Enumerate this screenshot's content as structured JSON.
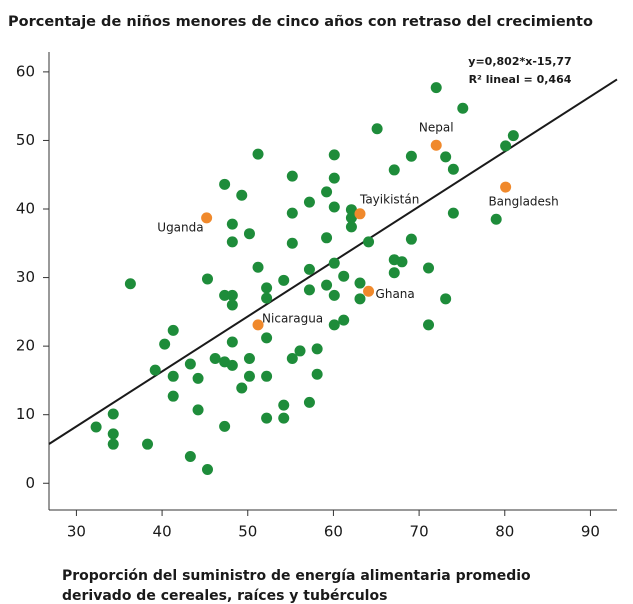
{
  "chart_data": {
    "type": "scatter",
    "title": "Porcentaje de niños menores de cinco años con retraso del crecimiento",
    "x_label": [
      "Proporción del suministro de energía alimentaria promedio",
      "derivado de cereales, raíces y tubérculos"
    ],
    "annotations": [
      "y=0,802*x-15,77",
      "R² lineal = 0,464"
    ],
    "trendline": {
      "slope": 0.802,
      "intercept": -15.77,
      "color": "#1a1a1a"
    },
    "xlim": [
      26.8,
      93.1
    ],
    "ylim": [
      -3.9,
      62.9
    ],
    "xticks": [
      30,
      40,
      50,
      60,
      70,
      80,
      90
    ],
    "yticks": [
      0,
      10,
      20,
      30,
      40,
      50,
      60
    ],
    "grid": false,
    "series": [
      {
        "color": "#1e8c3a",
        "x": [
          32.3,
          34.3,
          34.3,
          34.3,
          38.3,
          36.3,
          39.2,
          40.3,
          41.3,
          41.3,
          41.3,
          43.3,
          43.3,
          44.2,
          44.2,
          45.3,
          45.3,
          46.2,
          47.3,
          47.3,
          47.3,
          47.3,
          48.2,
          48.2,
          48.2,
          48.2,
          48.2,
          48.2,
          49.3,
          49.3,
          50.2,
          50.2,
          50.2,
          51.2,
          51.2,
          52.2,
          52.2,
          52.2,
          52.2,
          52.2,
          54.2,
          54.2,
          54.2,
          55.2,
          55.2,
          55.2,
          55.2,
          56.1,
          57.2,
          57.2,
          57.2,
          57.2,
          58.1,
          58.1,
          59.2,
          59.2,
          59.2,
          60.1,
          60.1,
          60.1,
          60.1,
          60.1,
          60.1,
          61.2,
          61.2,
          62.1,
          62.1,
          62.1,
          63.1,
          63.1,
          64.1,
          65.1,
          67.1,
          67.1,
          67.1,
          68.0,
          69.1,
          69.1,
          71.1,
          71.1,
          73.1,
          73.1,
          74.0,
          74.0,
          75.1,
          72.0,
          79.0,
          80.1,
          81.0
        ],
        "y": [
          8.2,
          10.1,
          7.2,
          5.7,
          5.7,
          29.1,
          16.5,
          20.3,
          22.3,
          15.6,
          12.7,
          17.4,
          3.9,
          15.3,
          10.7,
          29.8,
          2.0,
          18.2,
          43.6,
          27.4,
          17.7,
          8.3,
          27.4,
          26.0,
          37.8,
          35.2,
          20.6,
          17.2,
          42.0,
          13.9,
          36.4,
          18.2,
          15.6,
          48.0,
          31.5,
          28.5,
          27.0,
          21.2,
          15.6,
          9.5,
          29.6,
          11.4,
          9.5,
          44.8,
          39.4,
          35.0,
          18.2,
          19.3,
          41.0,
          31.2,
          28.2,
          11.8,
          19.6,
          15.9,
          42.5,
          35.8,
          28.9,
          47.9,
          44.5,
          40.3,
          32.1,
          27.4,
          23.1,
          30.2,
          23.8,
          39.9,
          38.7,
          37.4,
          29.2,
          26.9,
          35.2,
          51.7,
          45.7,
          32.6,
          30.7,
          32.3,
          47.7,
          35.6,
          31.4,
          23.1,
          47.6,
          26.9,
          45.8,
          39.4,
          54.7,
          57.7,
          38.5,
          49.2,
          50.7
        ]
      },
      {
        "color": "#f0892c",
        "labels": [
          "Uganda",
          "Nepal",
          "Tayikistán",
          "Bangladesh",
          "Ghana",
          "Nicaragua"
        ],
        "x": [
          45.2,
          72.0,
          63.1,
          80.1,
          64.1,
          51.2
        ],
        "y": [
          38.7,
          49.3,
          39.3,
          43.2,
          28.0,
          23.1
        ]
      }
    ]
  }
}
